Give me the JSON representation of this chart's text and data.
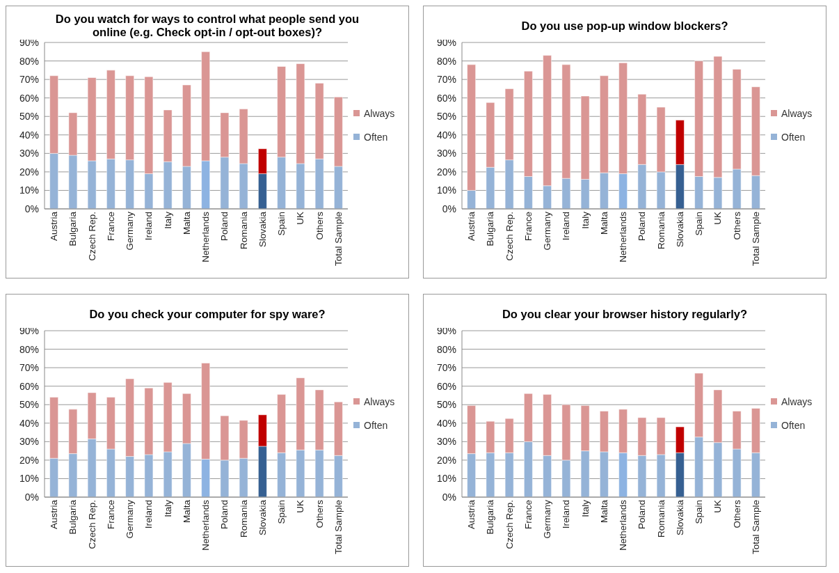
{
  "chart_data": [
    {
      "type": "bar",
      "title": "Do you watch for ways to control what people send you online (e.g. Check opt-in / opt-out boxes)?",
      "categories": [
        "Austria",
        "Bulgaria",
        "Czech Rep.",
        "France",
        "Germany",
        "Ireland",
        "Italy",
        "Malta",
        "Netherlands",
        "Poland",
        "Romania",
        "Slovakia",
        "Spain",
        "UK",
        "Others",
        "Total Sample"
      ],
      "stacked": true,
      "ylim": [
        0,
        90
      ],
      "yticks": [
        {
          "value": 0,
          "label": "0%"
        },
        {
          "value": 10,
          "label": "10%"
        },
        {
          "value": 20,
          "label": "20%"
        },
        {
          "value": 30,
          "label": "30%"
        },
        {
          "value": 40,
          "label": "40%"
        },
        {
          "value": 50,
          "label": "50%"
        },
        {
          "value": 60,
          "label": "60%"
        },
        {
          "value": 70,
          "label": "70%"
        },
        {
          "value": 80,
          "label": "80%"
        },
        {
          "value": 90,
          "label": "90%"
        }
      ],
      "grid": "y",
      "legend": "right",
      "series": [
        {
          "name": "Often",
          "color": "#95b3d7",
          "colors": [
            "#95b3d7",
            "#95b3d7",
            "#95b3d7",
            "#95b3d7",
            "#95b3d7",
            "#95b3d7",
            "#95b3d7",
            "#95b3d7",
            "#8db3e2",
            "#95b3d7",
            "#95b3d7",
            "#366092",
            "#95b3d7",
            "#95b3d7",
            "#95b3d7",
            "#95b3d7"
          ],
          "values": [
            30,
            29,
            26,
            27,
            26.5,
            19,
            25.5,
            23,
            26,
            28,
            24.5,
            19,
            28,
            24.5,
            27,
            23
          ]
        },
        {
          "name": "Always",
          "color": "#da9694",
          "colors": [
            "#da9694",
            "#da9694",
            "#da9694",
            "#da9694",
            "#da9694",
            "#da9694",
            "#da9694",
            "#da9694",
            "#da9694",
            "#da9694",
            "#da9694",
            "#c00000",
            "#da9694",
            "#da9694",
            "#da9694",
            "#da9694"
          ],
          "values": [
            42,
            23,
            45,
            48,
            45.5,
            52.5,
            28,
            44,
            59,
            24,
            29.5,
            13.5,
            49,
            54,
            41,
            37.5
          ]
        }
      ]
    },
    {
      "type": "bar",
      "title": "Do you use pop-up window blockers?",
      "categories": [
        "Austria",
        "Bulgaria",
        "Czech Rep.",
        "France",
        "Germany",
        "Ireland",
        "Italy",
        "Malta",
        "Netherlands",
        "Poland",
        "Romania",
        "Slovakia",
        "Spain",
        "UK",
        "Others",
        "Total Sample"
      ],
      "stacked": true,
      "ylim": [
        0,
        90
      ],
      "yticks": [
        {
          "value": 0,
          "label": "0%"
        },
        {
          "value": 10,
          "label": "10%"
        },
        {
          "value": 20,
          "label": "20%"
        },
        {
          "value": 30,
          "label": "30%"
        },
        {
          "value": 40,
          "label": "40%"
        },
        {
          "value": 50,
          "label": "50%"
        },
        {
          "value": 60,
          "label": "60%"
        },
        {
          "value": 70,
          "label": "70%"
        },
        {
          "value": 80,
          "label": "80%"
        },
        {
          "value": 90,
          "label": "90%"
        }
      ],
      "grid": "y",
      "legend": "right",
      "series": [
        {
          "name": "Often",
          "color": "#95b3d7",
          "colors": [
            "#95b3d7",
            "#95b3d7",
            "#95b3d7",
            "#95b3d7",
            "#95b3d7",
            "#95b3d7",
            "#95b3d7",
            "#95b3d7",
            "#8db3e2",
            "#95b3d7",
            "#95b3d7",
            "#366092",
            "#95b3d7",
            "#95b3d7",
            "#95b3d7",
            "#95b3d7"
          ],
          "values": [
            10,
            22.5,
            26.5,
            17.5,
            12.5,
            16.5,
            16,
            19.5,
            19,
            24,
            20,
            24,
            17.5,
            17,
            21.5,
            18
          ]
        },
        {
          "name": "Always",
          "color": "#da9694",
          "colors": [
            "#da9694",
            "#da9694",
            "#da9694",
            "#da9694",
            "#da9694",
            "#da9694",
            "#da9694",
            "#da9694",
            "#da9694",
            "#da9694",
            "#da9694",
            "#c00000",
            "#da9694",
            "#da9694",
            "#da9694",
            "#da9694"
          ],
          "values": [
            68,
            35,
            38.5,
            57,
            70.5,
            61.5,
            45,
            52.5,
            60,
            38,
            35,
            24,
            62.5,
            65.5,
            54,
            48
          ]
        }
      ]
    },
    {
      "type": "bar",
      "title": "Do you check your computer for spy ware?",
      "categories": [
        "Austria",
        "Bulgaria",
        "Czech Rep.",
        "France",
        "Germany",
        "Ireland",
        "Italy",
        "Malta",
        "Netherlands",
        "Poland",
        "Romania",
        "Slovakia",
        "Spain",
        "UK",
        "Others",
        "Total Sample"
      ],
      "stacked": true,
      "ylim": [
        0,
        90
      ],
      "yticks": [
        {
          "value": 0,
          "label": "0%"
        },
        {
          "value": 10,
          "label": "10%"
        },
        {
          "value": 20,
          "label": "20%"
        },
        {
          "value": 30,
          "label": "30%"
        },
        {
          "value": 40,
          "label": "40%"
        },
        {
          "value": 50,
          "label": "50%"
        },
        {
          "value": 60,
          "label": "60%"
        },
        {
          "value": 70,
          "label": "70%"
        },
        {
          "value": 80,
          "label": "80%"
        },
        {
          "value": 90,
          "label": "90%"
        }
      ],
      "grid": "y",
      "legend": "right",
      "series": [
        {
          "name": "Often",
          "color": "#95b3d7",
          "colors": [
            "#95b3d7",
            "#95b3d7",
            "#95b3d7",
            "#95b3d7",
            "#95b3d7",
            "#95b3d7",
            "#95b3d7",
            "#95b3d7",
            "#8db3e2",
            "#95b3d7",
            "#95b3d7",
            "#366092",
            "#95b3d7",
            "#95b3d7",
            "#95b3d7",
            "#95b3d7"
          ],
          "values": [
            21,
            23.5,
            31.5,
            26,
            22,
            23,
            24.5,
            29,
            20.5,
            20,
            21,
            27.5,
            24,
            25.5,
            25.5,
            22.5
          ]
        },
        {
          "name": "Always",
          "color": "#da9694",
          "colors": [
            "#da9694",
            "#da9694",
            "#da9694",
            "#da9694",
            "#da9694",
            "#da9694",
            "#da9694",
            "#da9694",
            "#da9694",
            "#da9694",
            "#da9694",
            "#c00000",
            "#da9694",
            "#da9694",
            "#da9694",
            "#da9694"
          ],
          "values": [
            33,
            24,
            25,
            28,
            42,
            36,
            37.5,
            27,
            52,
            24,
            20.5,
            17,
            31.5,
            39,
            32.5,
            29
          ]
        }
      ]
    },
    {
      "type": "bar",
      "title": "Do you clear your browser history regularly?",
      "categories": [
        "Austria",
        "Bulgaria",
        "Czech Rep.",
        "France",
        "Germany",
        "Ireland",
        "Italy",
        "Malta",
        "Netherlands",
        "Poland",
        "Romania",
        "Slovakia",
        "Spain",
        "UK",
        "Others",
        "Total Sample"
      ],
      "stacked": true,
      "ylim": [
        0,
        90
      ],
      "yticks": [
        {
          "value": 0,
          "label": "0%"
        },
        {
          "value": 10,
          "label": "10%"
        },
        {
          "value": 20,
          "label": "20%"
        },
        {
          "value": 30,
          "label": "30%"
        },
        {
          "value": 40,
          "label": "40%"
        },
        {
          "value": 50,
          "label": "50%"
        },
        {
          "value": 60,
          "label": "60%"
        },
        {
          "value": 70,
          "label": "70%"
        },
        {
          "value": 80,
          "label": "80%"
        },
        {
          "value": 90,
          "label": "90%"
        }
      ],
      "grid": "y",
      "legend": "right",
      "series": [
        {
          "name": "Often",
          "color": "#95b3d7",
          "colors": [
            "#95b3d7",
            "#95b3d7",
            "#95b3d7",
            "#95b3d7",
            "#95b3d7",
            "#95b3d7",
            "#95b3d7",
            "#95b3d7",
            "#8db3e2",
            "#95b3d7",
            "#95b3d7",
            "#366092",
            "#95b3d7",
            "#95b3d7",
            "#95b3d7",
            "#95b3d7"
          ],
          "values": [
            23.5,
            24,
            24,
            30,
            22.5,
            20,
            25,
            24.5,
            24,
            22.5,
            23,
            24,
            32.5,
            29.5,
            26,
            24
          ]
        },
        {
          "name": "Always",
          "color": "#da9694",
          "colors": [
            "#da9694",
            "#da9694",
            "#da9694",
            "#da9694",
            "#da9694",
            "#da9694",
            "#da9694",
            "#da9694",
            "#da9694",
            "#da9694",
            "#da9694",
            "#c00000",
            "#da9694",
            "#da9694",
            "#da9694",
            "#da9694"
          ],
          "values": [
            26,
            17,
            18.5,
            26,
            33,
            30,
            24.5,
            22,
            23.5,
            20.5,
            20,
            14,
            34.5,
            28.5,
            20.5,
            24
          ]
        }
      ]
    }
  ]
}
